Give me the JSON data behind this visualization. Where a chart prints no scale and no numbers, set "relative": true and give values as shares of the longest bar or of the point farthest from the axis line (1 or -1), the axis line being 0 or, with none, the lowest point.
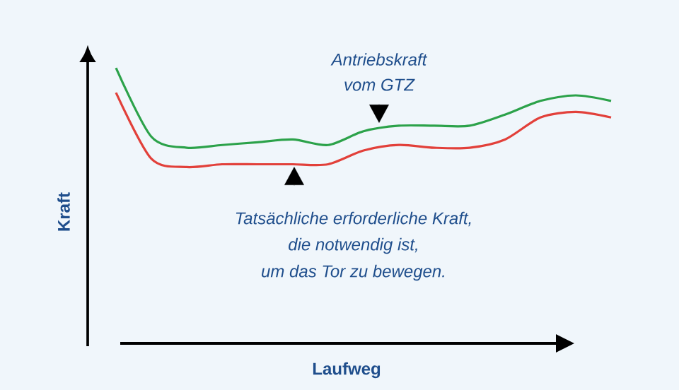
{
  "chart_data": {
    "type": "line",
    "relative": true,
    "xlabel": "Laufweg",
    "ylabel": "Kraft",
    "categories": [
      null,
      null,
      null,
      null,
      null,
      null,
      null,
      null,
      null,
      null,
      null,
      null,
      null,
      null,
      null
    ],
    "series": [
      {
        "color": "#2ca24a",
        "values": [
          1.0,
          0.75,
          0.71,
          0.72,
          0.73,
          0.74,
          0.72,
          0.77,
          0.79,
          0.79,
          0.79,
          0.83,
          0.88,
          0.9,
          0.88
        ]
      },
      {
        "color": "#e2403a",
        "values": [
          0.91,
          0.67,
          0.64,
          0.65,
          0.65,
          0.65,
          0.65,
          0.7,
          0.72,
          0.71,
          0.71,
          0.74,
          0.82,
          0.84,
          0.82
        ]
      }
    ],
    "annotations": [
      "Antriebskraft",
      "vom GTZ",
      "Tatsächliche erforderliche Kraft,",
      "die notwendig ist,",
      "um das Tor zu bewegen."
    ],
    "marker": "none",
    "line_style": "solid"
  }
}
